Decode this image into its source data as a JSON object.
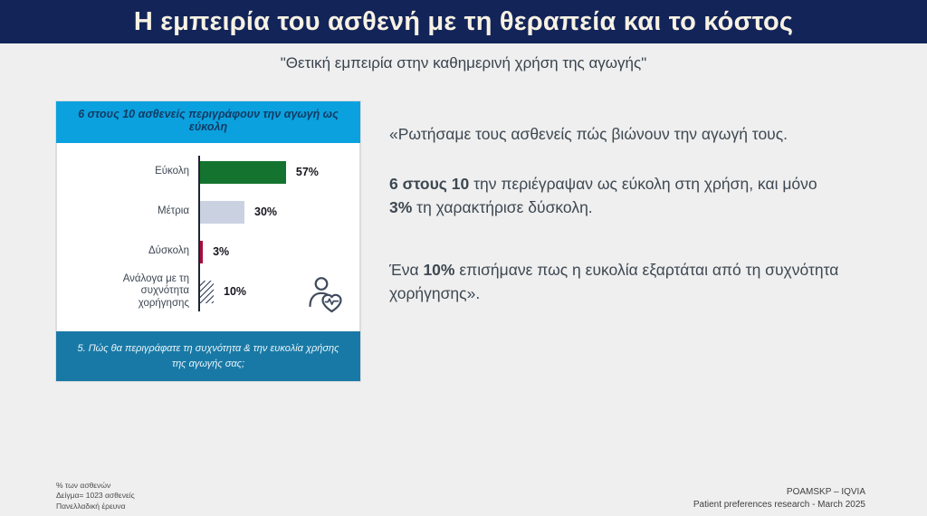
{
  "slide": {
    "title": "Η εμπειρία του ασθενή με τη θεραπεία και το κόστος",
    "subtitle": "\"Θετική εμπειρία στην καθημερινή χρήση της αγωγής\""
  },
  "chart": {
    "header_title": "6 στους 10 ασθενείς περιγράφουν την αγωγή ως εύκολη",
    "question_footnote": "5. Πώς θα περιγράφατε τη συχνότητα & την ευκολία χρήσης της αγωγής σας;"
  },
  "chart_data": {
    "type": "bar",
    "orientation": "horizontal",
    "title": "6 στους 10 ασθενείς περιγράφουν την αγωγή ως εύκολη",
    "categories": [
      "Εύκολη",
      "Μέτρια",
      "Δύσκολη",
      "Ανάλογα με τη συχνότητα χορήγησης"
    ],
    "values": [
      57,
      30,
      3,
      10
    ],
    "value_labels": [
      "57%",
      "30%",
      "3%",
      "10%"
    ],
    "unit": "% των ασθενών",
    "xlim": [
      0,
      100
    ],
    "grid": false,
    "data_labels": true,
    "bar_styles": [
      "solid",
      "solid",
      "solid",
      "hatched"
    ],
    "bar_colors": [
      "#14742F",
      "#CAD1E1",
      "#A90E3D",
      "hatch"
    ],
    "hatch_color": "#2C3E57"
  },
  "narrative": {
    "p1_parts": [
      {
        "text": "«Ρωτήσαμε τους ασθενείς πώς βιώνουν την αγωγή τους."
      }
    ],
    "p2_parts": [
      {
        "text": "6 στους 10"
      },
      {
        "text": " την περιέγραψαν ως εύκολη στη χρήση, και μόνο "
      },
      {
        "text": "3%"
      },
      {
        "text": " τη χαρακτήρισε δύσκολη."
      }
    ],
    "p3_parts": [
      {
        "text": "Ένα "
      },
      {
        "text": "10%"
      },
      {
        "text": " επισήμανε πως η ευκολία εξαρτάται από τη συχνότητα χορήγησης»."
      }
    ]
  },
  "footnotes": {
    "left": [
      "% των ασθενών",
      "Δείγμα= 1023 ασθενείς",
      "Πανελλαδική έρευνα"
    ],
    "right": [
      "POAMSKP – IQVIA",
      "Patient preferences research - March 2025"
    ]
  },
  "colors": {
    "banner_navy": "#132459",
    "header_cyan": "#0BA1DF",
    "footer_teal": "#1979A6",
    "bar_green": "#14742F",
    "bar_gray": "#CAD1E1",
    "bar_crimson": "#A90E3D",
    "hatch_navy": "#2C3E57"
  }
}
